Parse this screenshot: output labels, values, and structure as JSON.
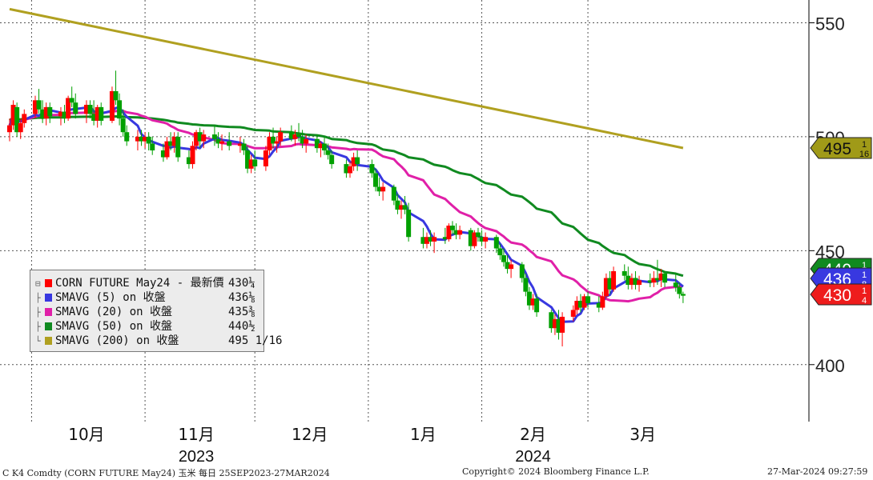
{
  "chart_data": {
    "type": "candlestick",
    "instrument": "CORN FUTURE May24",
    "x_range": [
      "2023-09-25",
      "2024-03-27"
    ],
    "ylim": [
      375,
      560
    ],
    "y_ticks": [
      "400",
      "450",
      "500",
      "550"
    ],
    "y_tick_values": [
      400,
      450,
      500,
      550
    ],
    "x_month_labels": [
      "10月",
      "11月",
      "12月",
      "1月",
      "2月",
      "3月"
    ],
    "x_year_labels": [
      "2023",
      "2024"
    ],
    "grid": true,
    "colors": {
      "up": "#ff0000",
      "down": "#00a000",
      "sma5": "#3838e0",
      "sma20": "#e020a8",
      "sma50": "#108a20",
      "sma200": "#b0a020"
    },
    "candles": [
      {
        "date": "2023-09-25",
        "o": 502,
        "h": 508,
        "l": 498,
        "c": 505
      },
      {
        "date": "2023-09-26",
        "o": 505,
        "h": 516,
        "l": 503,
        "c": 514
      },
      {
        "date": "2023-09-27",
        "o": 513,
        "h": 515,
        "l": 500,
        "c": 502
      },
      {
        "date": "2023-09-28",
        "o": 502,
        "h": 508,
        "l": 499,
        "c": 506
      },
      {
        "date": "2023-09-29",
        "o": 506,
        "h": 512,
        "l": 504,
        "c": 510
      },
      {
        "date": "2023-10-02",
        "o": 510,
        "h": 518,
        "l": 508,
        "c": 516
      },
      {
        "date": "2023-10-03",
        "o": 516,
        "h": 521,
        "l": 510,
        "c": 512
      },
      {
        "date": "2023-10-04",
        "o": 512,
        "h": 516,
        "l": 506,
        "c": 508
      },
      {
        "date": "2023-10-05",
        "o": 508,
        "h": 515,
        "l": 505,
        "c": 513
      },
      {
        "date": "2023-10-06",
        "o": 513,
        "h": 515,
        "l": 506,
        "c": 509
      },
      {
        "date": "2023-10-09",
        "o": 509,
        "h": 513,
        "l": 505,
        "c": 511
      },
      {
        "date": "2023-10-10",
        "o": 511,
        "h": 514,
        "l": 506,
        "c": 508
      },
      {
        "date": "2023-10-11",
        "o": 508,
        "h": 518,
        "l": 507,
        "c": 517
      },
      {
        "date": "2023-10-12",
        "o": 517,
        "h": 522,
        "l": 513,
        "c": 515
      },
      {
        "date": "2023-10-13",
        "o": 515,
        "h": 519,
        "l": 508,
        "c": 510
      },
      {
        "date": "2023-10-16",
        "o": 510,
        "h": 516,
        "l": 506,
        "c": 514
      },
      {
        "date": "2023-10-17",
        "o": 514,
        "h": 516,
        "l": 508,
        "c": 510
      },
      {
        "date": "2023-10-18",
        "o": 510,
        "h": 516,
        "l": 505,
        "c": 507
      },
      {
        "date": "2023-10-19",
        "o": 507,
        "h": 514,
        "l": 504,
        "c": 513
      },
      {
        "date": "2023-10-20",
        "o": 513,
        "h": 515,
        "l": 505,
        "c": 507
      },
      {
        "date": "2023-10-23",
        "o": 507,
        "h": 522,
        "l": 506,
        "c": 520
      },
      {
        "date": "2023-10-24",
        "o": 520,
        "h": 529,
        "l": 514,
        "c": 516
      },
      {
        "date": "2023-10-25",
        "o": 516,
        "h": 519,
        "l": 505,
        "c": 508
      },
      {
        "date": "2023-10-26",
        "o": 508,
        "h": 512,
        "l": 500,
        "c": 502
      },
      {
        "date": "2023-10-27",
        "o": 502,
        "h": 505,
        "l": 496,
        "c": 498
      },
      {
        "date": "2023-10-30",
        "o": 498,
        "h": 503,
        "l": 494,
        "c": 500
      },
      {
        "date": "2023-10-31",
        "o": 500,
        "h": 503,
        "l": 496,
        "c": 498
      },
      {
        "date": "2023-11-01",
        "o": 498,
        "h": 502,
        "l": 495,
        "c": 500
      },
      {
        "date": "2023-11-02",
        "o": 500,
        "h": 502,
        "l": 494,
        "c": 497
      },
      {
        "date": "2023-11-03",
        "o": 497,
        "h": 500,
        "l": 492,
        "c": 494
      },
      {
        "date": "2023-11-06",
        "o": 494,
        "h": 497,
        "l": 489,
        "c": 491
      },
      {
        "date": "2023-11-07",
        "o": 491,
        "h": 500,
        "l": 490,
        "c": 498
      },
      {
        "date": "2023-11-08",
        "o": 498,
        "h": 502,
        "l": 494,
        "c": 496
      },
      {
        "date": "2023-11-09",
        "o": 496,
        "h": 502,
        "l": 493,
        "c": 500
      },
      {
        "date": "2023-11-10",
        "o": 500,
        "h": 502,
        "l": 489,
        "c": 491
      },
      {
        "date": "2023-11-13",
        "o": 491,
        "h": 494,
        "l": 486,
        "c": 488
      },
      {
        "date": "2023-11-14",
        "o": 488,
        "h": 498,
        "l": 486,
        "c": 496
      },
      {
        "date": "2023-11-15",
        "o": 496,
        "h": 503,
        "l": 494,
        "c": 502
      },
      {
        "date": "2023-11-16",
        "o": 502,
        "h": 504,
        "l": 495,
        "c": 498
      },
      {
        "date": "2023-11-17",
        "o": 498,
        "h": 503,
        "l": 495,
        "c": 501
      },
      {
        "date": "2023-11-20",
        "o": 501,
        "h": 505,
        "l": 496,
        "c": 499
      },
      {
        "date": "2023-11-21",
        "o": 499,
        "h": 502,
        "l": 495,
        "c": 497
      },
      {
        "date": "2023-11-22",
        "o": 497,
        "h": 501,
        "l": 494,
        "c": 498
      },
      {
        "date": "2023-11-24",
        "o": 498,
        "h": 502,
        "l": 494,
        "c": 496
      },
      {
        "date": "2023-11-27",
        "o": 496,
        "h": 500,
        "l": 493,
        "c": 497
      },
      {
        "date": "2023-11-28",
        "o": 497,
        "h": 499,
        "l": 492,
        "c": 494
      },
      {
        "date": "2023-11-29",
        "o": 494,
        "h": 496,
        "l": 484,
        "c": 486
      },
      {
        "date": "2023-11-30",
        "o": 486,
        "h": 492,
        "l": 484,
        "c": 490
      },
      {
        "date": "2023-12-01",
        "o": 490,
        "h": 494,
        "l": 485,
        "c": 487
      },
      {
        "date": "2023-12-04",
        "o": 487,
        "h": 496,
        "l": 485,
        "c": 494
      },
      {
        "date": "2023-12-05",
        "o": 494,
        "h": 502,
        "l": 492,
        "c": 500
      },
      {
        "date": "2023-12-06",
        "o": 500,
        "h": 504,
        "l": 495,
        "c": 497
      },
      {
        "date": "2023-12-07",
        "o": 497,
        "h": 500,
        "l": 493,
        "c": 498
      },
      {
        "date": "2023-12-08",
        "o": 498,
        "h": 504,
        "l": 496,
        "c": 502
      },
      {
        "date": "2023-12-11",
        "o": 502,
        "h": 505,
        "l": 498,
        "c": 499
      },
      {
        "date": "2023-12-12",
        "o": 499,
        "h": 503,
        "l": 496,
        "c": 501
      },
      {
        "date": "2023-12-13",
        "o": 501,
        "h": 506,
        "l": 498,
        "c": 500
      },
      {
        "date": "2023-12-14",
        "o": 500,
        "h": 503,
        "l": 495,
        "c": 497
      },
      {
        "date": "2023-12-15",
        "o": 497,
        "h": 501,
        "l": 493,
        "c": 499
      },
      {
        "date": "2023-12-18",
        "o": 499,
        "h": 501,
        "l": 493,
        "c": 495
      },
      {
        "date": "2023-12-19",
        "o": 495,
        "h": 498,
        "l": 491,
        "c": 497
      },
      {
        "date": "2023-12-20",
        "o": 497,
        "h": 500,
        "l": 492,
        "c": 494
      },
      {
        "date": "2023-12-21",
        "o": 494,
        "h": 497,
        "l": 490,
        "c": 492
      },
      {
        "date": "2023-12-22",
        "o": 492,
        "h": 494,
        "l": 486,
        "c": 488
      },
      {
        "date": "2023-12-26",
        "o": 488,
        "h": 490,
        "l": 482,
        "c": 484
      },
      {
        "date": "2023-12-27",
        "o": 484,
        "h": 489,
        "l": 482,
        "c": 487
      },
      {
        "date": "2023-12-28",
        "o": 487,
        "h": 493,
        "l": 485,
        "c": 491
      },
      {
        "date": "2023-12-29",
        "o": 491,
        "h": 494,
        "l": 485,
        "c": 488
      },
      {
        "date": "2024-01-02",
        "o": 488,
        "h": 490,
        "l": 482,
        "c": 484
      },
      {
        "date": "2024-01-03",
        "o": 484,
        "h": 486,
        "l": 476,
        "c": 478
      },
      {
        "date": "2024-01-04",
        "o": 478,
        "h": 482,
        "l": 474,
        "c": 476
      },
      {
        "date": "2024-01-05",
        "o": 476,
        "h": 480,
        "l": 472,
        "c": 478
      },
      {
        "date": "2024-01-08",
        "o": 478,
        "h": 479,
        "l": 470,
        "c": 472
      },
      {
        "date": "2024-01-09",
        "o": 472,
        "h": 475,
        "l": 466,
        "c": 468
      },
      {
        "date": "2024-01-10",
        "o": 468,
        "h": 472,
        "l": 464,
        "c": 470
      },
      {
        "date": "2024-01-11",
        "o": 470,
        "h": 474,
        "l": 466,
        "c": 468
      },
      {
        "date": "2024-01-12",
        "o": 468,
        "h": 471,
        "l": 454,
        "c": 456
      },
      {
        "date": "2024-01-16",
        "o": 456,
        "h": 460,
        "l": 451,
        "c": 453
      },
      {
        "date": "2024-01-17",
        "o": 453,
        "h": 458,
        "l": 451,
        "c": 456
      },
      {
        "date": "2024-01-18",
        "o": 456,
        "h": 459,
        "l": 452,
        "c": 454
      },
      {
        "date": "2024-01-19",
        "o": 454,
        "h": 458,
        "l": 449,
        "c": 456
      },
      {
        "date": "2024-01-22",
        "o": 456,
        "h": 460,
        "l": 453,
        "c": 455
      },
      {
        "date": "2024-01-23",
        "o": 455,
        "h": 462,
        "l": 454,
        "c": 461
      },
      {
        "date": "2024-01-24",
        "o": 461,
        "h": 463,
        "l": 457,
        "c": 459
      },
      {
        "date": "2024-01-25",
        "o": 459,
        "h": 462,
        "l": 455,
        "c": 457
      },
      {
        "date": "2024-01-26",
        "o": 457,
        "h": 461,
        "l": 455,
        "c": 459
      },
      {
        "date": "2024-01-29",
        "o": 459,
        "h": 460,
        "l": 450,
        "c": 452
      },
      {
        "date": "2024-01-30",
        "o": 452,
        "h": 459,
        "l": 451,
        "c": 458
      },
      {
        "date": "2024-01-31",
        "o": 458,
        "h": 460,
        "l": 454,
        "c": 456
      },
      {
        "date": "2024-02-01",
        "o": 456,
        "h": 459,
        "l": 452,
        "c": 454
      },
      {
        "date": "2024-02-02",
        "o": 454,
        "h": 458,
        "l": 451,
        "c": 456
      },
      {
        "date": "2024-02-05",
        "o": 456,
        "h": 457,
        "l": 449,
        "c": 451
      },
      {
        "date": "2024-02-06",
        "o": 451,
        "h": 453,
        "l": 446,
        "c": 448
      },
      {
        "date": "2024-02-07",
        "o": 448,
        "h": 451,
        "l": 443,
        "c": 445
      },
      {
        "date": "2024-02-08",
        "o": 445,
        "h": 448,
        "l": 440,
        "c": 442
      },
      {
        "date": "2024-02-09",
        "o": 442,
        "h": 446,
        "l": 438,
        "c": 444
      },
      {
        "date": "2024-02-12",
        "o": 444,
        "h": 445,
        "l": 436,
        "c": 438
      },
      {
        "date": "2024-02-13",
        "o": 438,
        "h": 440,
        "l": 430,
        "c": 432
      },
      {
        "date": "2024-02-14",
        "o": 432,
        "h": 434,
        "l": 424,
        "c": 426
      },
      {
        "date": "2024-02-15",
        "o": 426,
        "h": 431,
        "l": 424,
        "c": 429
      },
      {
        "date": "2024-02-16",
        "o": 429,
        "h": 431,
        "l": 421,
        "c": 423
      },
      {
        "date": "2024-02-20",
        "o": 423,
        "h": 424,
        "l": 414,
        "c": 416
      },
      {
        "date": "2024-02-21",
        "o": 416,
        "h": 422,
        "l": 413,
        "c": 420
      },
      {
        "date": "2024-02-22",
        "o": 420,
        "h": 424,
        "l": 411,
        "c": 414
      },
      {
        "date": "2024-02-23",
        "o": 414,
        "h": 423,
        "l": 408,
        "c": 421
      },
      {
        "date": "2024-02-26",
        "o": 421,
        "h": 426,
        "l": 419,
        "c": 424
      },
      {
        "date": "2024-02-27",
        "o": 424,
        "h": 430,
        "l": 422,
        "c": 428
      },
      {
        "date": "2024-02-28",
        "o": 428,
        "h": 431,
        "l": 423,
        "c": 425
      },
      {
        "date": "2024-02-29",
        "o": 425,
        "h": 431,
        "l": 424,
        "c": 430
      },
      {
        "date": "2024-03-01",
        "o": 430,
        "h": 432,
        "l": 425,
        "c": 427
      },
      {
        "date": "2024-03-04",
        "o": 427,
        "h": 430,
        "l": 423,
        "c": 425
      },
      {
        "date": "2024-03-05",
        "o": 425,
        "h": 432,
        "l": 424,
        "c": 430
      },
      {
        "date": "2024-03-06",
        "o": 430,
        "h": 440,
        "l": 429,
        "c": 438
      },
      {
        "date": "2024-03-07",
        "o": 438,
        "h": 441,
        "l": 431,
        "c": 433
      },
      {
        "date": "2024-03-08",
        "o": 433,
        "h": 443,
        "l": 432,
        "c": 441
      },
      {
        "date": "2024-03-11",
        "o": 441,
        "h": 444,
        "l": 437,
        "c": 439
      },
      {
        "date": "2024-03-12",
        "o": 439,
        "h": 443,
        "l": 433,
        "c": 435
      },
      {
        "date": "2024-03-13",
        "o": 435,
        "h": 440,
        "l": 433,
        "c": 438
      },
      {
        "date": "2024-03-14",
        "o": 438,
        "h": 441,
        "l": 433,
        "c": 435
      },
      {
        "date": "2024-03-15",
        "o": 435,
        "h": 439,
        "l": 432,
        "c": 437
      },
      {
        "date": "2024-03-18",
        "o": 437,
        "h": 440,
        "l": 434,
        "c": 436
      },
      {
        "date": "2024-03-19",
        "o": 436,
        "h": 441,
        "l": 434,
        "c": 438
      },
      {
        "date": "2024-03-20",
        "o": 438,
        "h": 446,
        "l": 435,
        "c": 437
      },
      {
        "date": "2024-03-21",
        "o": 437,
        "h": 442,
        "l": 434,
        "c": 440
      },
      {
        "date": "2024-03-22",
        "o": 440,
        "h": 441,
        "l": 434,
        "c": 436
      },
      {
        "date": "2024-03-25",
        "o": 436,
        "h": 440,
        "l": 432,
        "c": 434
      },
      {
        "date": "2024-03-26",
        "o": 434,
        "h": 436,
        "l": 429,
        "c": 431
      },
      {
        "date": "2024-03-27",
        "o": 431,
        "h": 432,
        "l": 427,
        "c": 430.25
      }
    ],
    "sma200_endpoints": [
      {
        "date": "2023-09-25",
        "value": 556
      },
      {
        "date": "2024-03-27",
        "value": 495.06
      }
    ],
    "series": [
      {
        "name": "SMAVG (5)  on 收盤",
        "window": 5,
        "last": "436⅛"
      },
      {
        "name": "SMAVG (20)  on 收盤",
        "window": 20,
        "last": "435⅜"
      },
      {
        "name": "SMAVG (50)  on 收盤",
        "window": 50,
        "last": "440½"
      },
      {
        "name": "SMAVG (200)  on 收盤",
        "window": 200,
        "last": "495 1/16"
      }
    ],
    "price_tags": [
      {
        "id": "sma200",
        "value": 495.06,
        "text": "495",
        "frac": "1/16",
        "color": "#a09a18"
      },
      {
        "id": "sma50",
        "value": 440.5,
        "text": "440",
        "frac": "1/2",
        "color": "#108a20"
      },
      {
        "id": "sma5",
        "value": 436.125,
        "text": "436",
        "frac": "1/8",
        "color": "#3838e0"
      },
      {
        "id": "last",
        "value": 430.25,
        "text": "430",
        "frac": "1/4",
        "color": "#ee1c1c"
      }
    ]
  },
  "legend": {
    "items": [
      {
        "label": "CORN FUTURE May24 - 最新價",
        "value": "430¼",
        "color": "#ff0000"
      },
      {
        "label": "SMAVG (5)  on 收盤",
        "value": "436⅛",
        "color": "#3838e0"
      },
      {
        "label": "SMAVG (20)  on 收盤",
        "value": "435⅜",
        "color": "#e020a8"
      },
      {
        "label": "SMAVG (50)  on 收盤",
        "value": "440½",
        "color": "#108a20"
      },
      {
        "label": "SMAVG (200)  on 收盤",
        "value": "495 1/16",
        "color": "#b0a020"
      }
    ]
  },
  "footer": {
    "left": "C K4 Comdty (CORN FUTURE         May24) 玉米  每日 25SEP2023-27MAR2024",
    "center": "Copyright© 2024 Bloomberg Finance L.P.",
    "right": "27-Mar-2024 09:27:59"
  }
}
